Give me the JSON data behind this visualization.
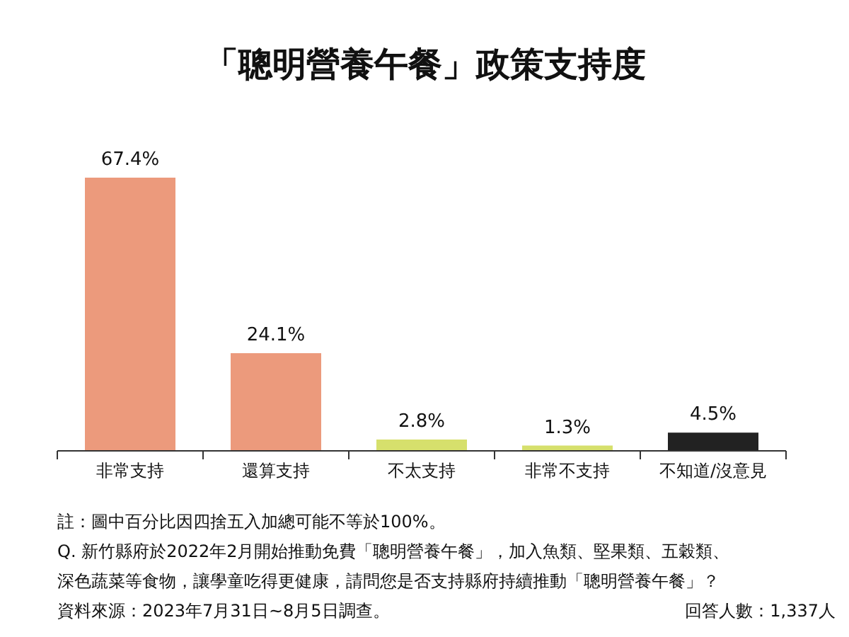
{
  "chart_data": {
    "type": "bar",
    "title": "「聰明營養午餐」政策支持度",
    "categories": [
      "非常支持",
      "還算支持",
      "不太支持",
      "非常不支持",
      "不知道/沒意見"
    ],
    "values": [
      67.4,
      24.1,
      2.8,
      1.3,
      4.5
    ],
    "colors": [
      "#ec9a7c",
      "#ec9a7c",
      "#d6e06c",
      "#d6e06c",
      "#222222"
    ],
    "data_labels": true,
    "value_labels": [
      "67.4%",
      "24.1%",
      "2.8%",
      "1.3%",
      "4.5%"
    ],
    "grid": false,
    "annotations": [
      "註：圖中百分比因四捨五入加總可能不等於100%。",
      "Q. 新竹縣府於2022年2月開始推動免費「聰明營養午餐」，加入魚類、堅果類、五穀類、深色蔬菜等食物，讓學童吃得更健康，請問您是否支持縣府持續推動「聰明營養午餐」？",
      "資料來源：2023年7月31日~8月5日調查。",
      "回答人數：1,337人"
    ]
  }
}
